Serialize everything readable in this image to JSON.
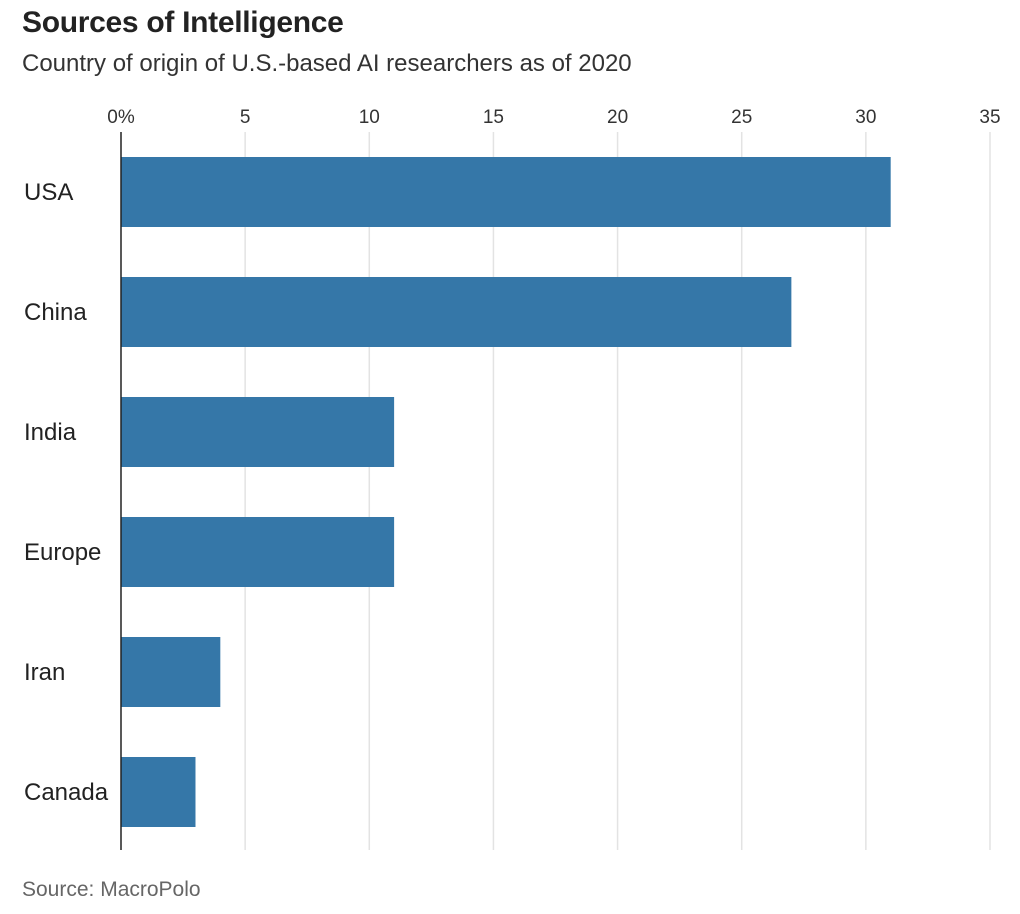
{
  "header": {
    "title": "Sources of Intelligence",
    "subtitle": "Country of origin of U.S.-based AI researchers as of 2020"
  },
  "footer": {
    "source": "Source: MacroPolo"
  },
  "colors": {
    "bar": "#3577a8",
    "grid": "#e3e3e3",
    "axis": "#222222"
  },
  "chart_data": {
    "type": "bar",
    "orientation": "horizontal",
    "title": "Sources of Intelligence",
    "subtitle": "Country of origin of U.S.-based AI researchers as of 2020",
    "categories": [
      "USA",
      "China",
      "India",
      "Europe",
      "Iran",
      "Canada"
    ],
    "values": [
      31,
      27,
      11,
      11,
      4,
      3
    ],
    "unit": "%",
    "xlim": [
      0,
      35
    ],
    "xticks": [
      0,
      5,
      10,
      15,
      20,
      25,
      30,
      35
    ],
    "xtick_labels": [
      "0%",
      "5",
      "10",
      "15",
      "20",
      "25",
      "30",
      "35"
    ],
    "axis_position": "top",
    "grid": true,
    "xlabel": "",
    "ylabel": ""
  }
}
